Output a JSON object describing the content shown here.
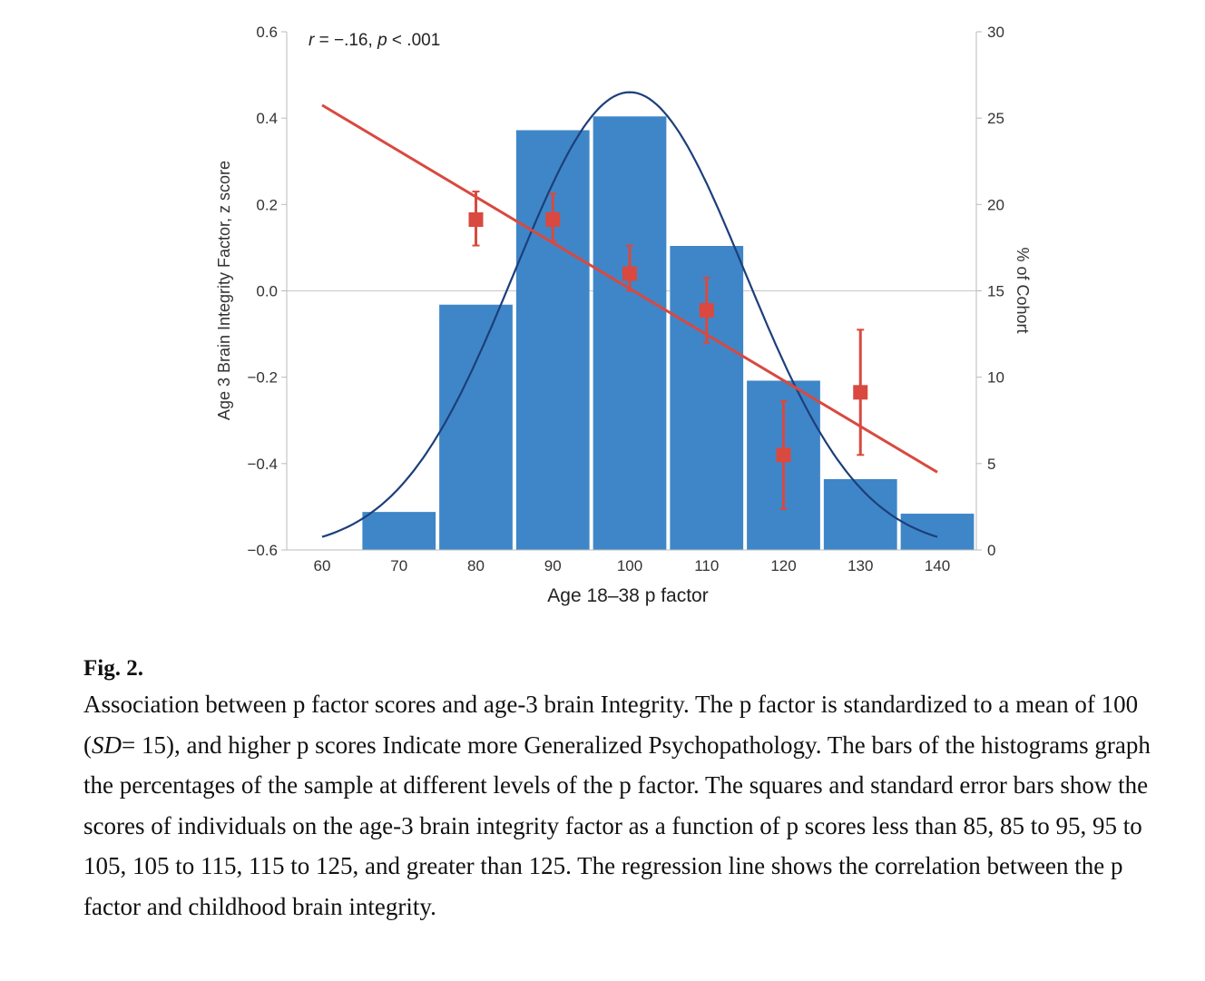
{
  "chart_data": {
    "type": "bar",
    "annotation": {
      "r": "r",
      "eq": " = −.16, ",
      "p": "p",
      "rest": " < .001"
    },
    "xlabel": "Age 18–38 p factor",
    "ylabel_left": "Age 3 Brain Integrity Factor, z score",
    "ylabel_right": "% of Cohort",
    "x_ticks": [
      "60",
      "70",
      "80",
      "90",
      "100",
      "110",
      "120",
      "130",
      "140"
    ],
    "xlim": [
      60,
      140
    ],
    "y_left_ticks": [
      "−0.6",
      "−0.4",
      "−0.2",
      "0.0",
      "0.2",
      "0.4",
      "0.6"
    ],
    "y_left_lim": [
      -0.6,
      0.6
    ],
    "y_right_ticks": [
      "0",
      "5",
      "10",
      "15",
      "20",
      "25",
      "30"
    ],
    "y_right_lim": [
      0,
      30
    ],
    "histogram": {
      "axis": "right",
      "color": "#3f86c8",
      "bins": [
        70,
        80,
        90,
        100,
        110,
        120,
        130,
        140
      ],
      "values": [
        2.2,
        14.2,
        24.3,
        25.1,
        17.6,
        9.8,
        4.1,
        2.1
      ]
    },
    "normal_curve": {
      "axis": "right",
      "color": "#1c3f7a",
      "mean": 100,
      "sd": 15,
      "peak": 26.5,
      "x_range": [
        60,
        140
      ]
    },
    "regression_line": {
      "axis": "left",
      "color": "#d9493f",
      "x": [
        60,
        140
      ],
      "y": [
        0.43,
        -0.42
      ]
    },
    "group_means": {
      "axis": "left",
      "color": "#d9493f",
      "points": [
        {
          "x": 80,
          "y": 0.165,
          "err_low": 0.105,
          "err_high": 0.23
        },
        {
          "x": 90,
          "y": 0.165,
          "err_low": 0.115,
          "err_high": 0.225
        },
        {
          "x": 100,
          "y": 0.04,
          "err_low": 0.0,
          "err_high": 0.105
        },
        {
          "x": 110,
          "y": -0.045,
          "err_low": -0.12,
          "err_high": 0.03
        },
        {
          "x": 120,
          "y": -0.38,
          "err_low": -0.505,
          "err_high": -0.255
        },
        {
          "x": 130,
          "y": -0.235,
          "err_low": -0.38,
          "err_high": -0.09
        }
      ]
    }
  },
  "caption": {
    "fig_label": "Fig. 2.",
    "text_before_sd": "Association between p factor scores and age-3 brain Integrity. The p factor is standardized to a mean of 100 (",
    "sd": "SD",
    "text_after_sd": "= 15), and higher p scores Indicate more Generalized Psychopathology. The bars of the histograms graph the percentages of the sample at different levels of the p factor. The squares and standard error bars show the scores of individuals on the age-3 brain integrity factor as a function of p scores less than 85, 85 to 95, 95 to 105, 105 to 115, 115 to 125, and greater than 125. The regression line shows the correlation between the p factor and childhood brain integrity."
  }
}
